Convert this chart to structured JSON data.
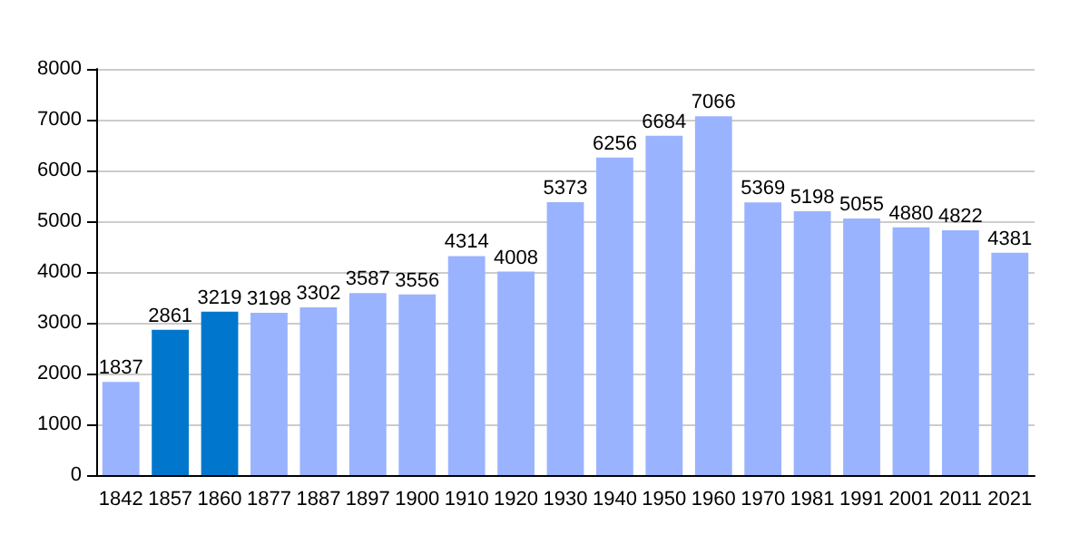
{
  "chart_data": {
    "type": "bar",
    "categories": [
      "1842",
      "1857",
      "1860",
      "1877",
      "1887",
      "1897",
      "1900",
      "1910",
      "1920",
      "1930",
      "1940",
      "1950",
      "1960",
      "1970",
      "1981",
      "1991",
      "2001",
      "2011",
      "2021"
    ],
    "values": [
      1837,
      2861,
      3219,
      3198,
      3302,
      3587,
      3556,
      4314,
      4008,
      5373,
      6256,
      6684,
      7066,
      5369,
      5198,
      5055,
      4880,
      4822,
      4381
    ],
    "colors": [
      "#99b3ff",
      "#0077cc",
      "#0077cc",
      "#99b3ff",
      "#99b3ff",
      "#99b3ff",
      "#99b3ff",
      "#99b3ff",
      "#99b3ff",
      "#99b3ff",
      "#99b3ff",
      "#99b3ff",
      "#99b3ff",
      "#99b3ff",
      "#99b3ff",
      "#99b3ff",
      "#99b3ff",
      "#99b3ff",
      "#99b3ff"
    ],
    "ylim": [
      0,
      8000
    ],
    "yticks": [
      0,
      1000,
      2000,
      3000,
      4000,
      5000,
      6000,
      7000,
      8000
    ],
    "grid": true,
    "data_labels": true
  }
}
